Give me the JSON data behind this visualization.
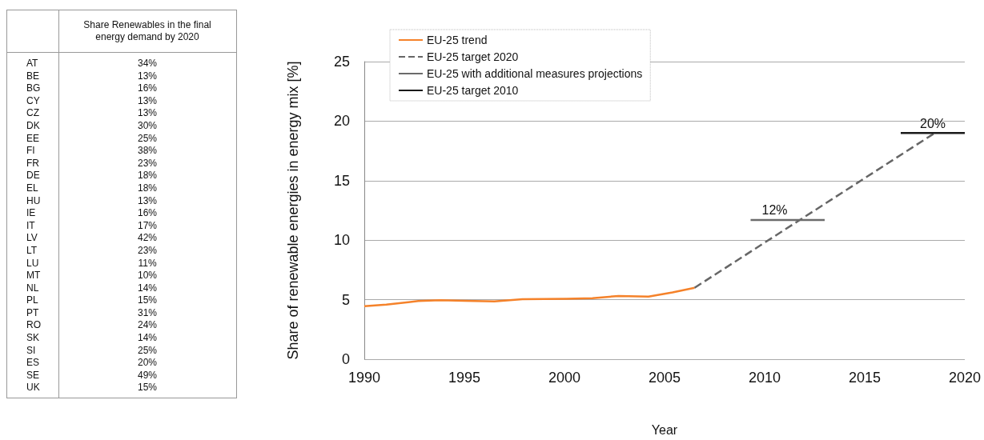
{
  "chart_data": [
    {
      "type": "other",
      "title": "Share Renewables in the final energy demand by 2020",
      "categories": [
        "AT",
        "BE",
        "BG",
        "CY",
        "CZ",
        "DK",
        "EE",
        "FI",
        "FR",
        "DE",
        "EL",
        "HU",
        "IE",
        "IT",
        "LV",
        "LT",
        "LU",
        "MT",
        "NL",
        "PL",
        "PT",
        "RO",
        "SK",
        "SI",
        "ES",
        "SE",
        "UK"
      ],
      "value_labels": [
        "34%",
        "13%",
        "16%",
        "13%",
        "13%",
        "30%",
        "25%",
        "38%",
        "23%",
        "18%",
        "18%",
        "13%",
        "16%",
        "17%",
        "42%",
        "23%",
        "11%",
        "10%",
        "14%",
        "15%",
        "31%",
        "24%",
        "14%",
        "25%",
        "20%",
        "49%",
        "15%"
      ]
    },
    {
      "type": "line",
      "xlabel": "Year",
      "ylabel": "Share of renewable energies in energy mix [%]",
      "xlim": [
        1990,
        2020
      ],
      "xticks": [
        1990,
        1995,
        2000,
        2005,
        2010,
        2015,
        2020
      ],
      "ylim": [
        0,
        25
      ],
      "yticks": [
        0,
        5,
        10,
        15,
        20,
        25
      ],
      "grid": "y",
      "legend": "top left",
      "marker": "none",
      "series": [
        {
          "name": "EU-25 trend",
          "color": "#f5822a",
          "x": [
            1990,
            1991.1,
            1992.7,
            1993.8,
            1995.0,
            1996.5,
            1997.9,
            2000.1,
            2001.4,
            2002.7,
            2004.2,
            2005.4,
            2006.5
          ],
          "values": [
            4.45,
            4.58,
            4.89,
            4.96,
            4.91,
            4.85,
            5.04,
            5.07,
            5.13,
            5.31,
            5.26,
            5.61,
            6.0
          ]
        },
        {
          "name": "EU-25 target 2020",
          "color": "#666666",
          "line_style": "dashed",
          "x": [
            2006.5,
            2018.5
          ],
          "values": [
            6.0,
            19.0
          ]
        },
        {
          "name": "EU-25 with additional measures projections",
          "color": "#6b6b6b",
          "x": [
            2009.3,
            2013.0
          ],
          "values": [
            11.7,
            11.7
          ]
        },
        {
          "name": "EU-25 target 2010",
          "color": "#1a1a1a",
          "x": [
            2016.8,
            2020.0
          ],
          "values": [
            19.0,
            19.0
          ]
        }
      ],
      "annotations": [
        {
          "text": "12%",
          "x": 2010.5,
          "y": 11.7
        },
        {
          "text": "20%",
          "x": 2018.4,
          "y": 19.0
        }
      ]
    }
  ]
}
